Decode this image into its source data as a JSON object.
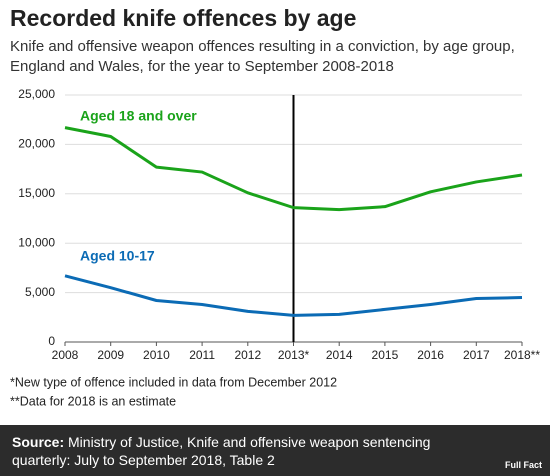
{
  "chart_data": {
    "type": "line",
    "title": "Recorded knife offences by age",
    "subtitle": "Knife and offensive weapon offences resulting in a conviction, by age group, England and Wales, for the year to September 2008-2018",
    "categories": [
      "2008",
      "2009",
      "2010",
      "2011",
      "2012",
      "2013*",
      "2014",
      "2015",
      "2016",
      "2017",
      "2018**"
    ],
    "series": [
      {
        "name": "Aged 18 and over",
        "color": "#1aa31a",
        "values": [
          21700,
          20800,
          17700,
          17200,
          15100,
          13600,
          13400,
          13700,
          15200,
          16200,
          16900
        ]
      },
      {
        "name": "Aged 10-17",
        "color": "#0b6bb5",
        "values": [
          6700,
          5500,
          4200,
          3800,
          3100,
          2700,
          2800,
          3300,
          3800,
          4400,
          4500
        ]
      }
    ],
    "ylim": [
      0,
      25000
    ],
    "yticks": [
      0,
      {
        "value": 5000,
        "label": "5,000"
      },
      {
        "value": 10000,
        "label": "10,000"
      },
      {
        "value": 15000,
        "label": "15,000"
      },
      {
        "value": 20000,
        "label": "20,000"
      },
      {
        "value": 25000,
        "label": "25,000"
      }
    ],
    "grid": true,
    "reference_line": "2013*",
    "footnotes": [
      "*New type of offence included in data from December 2012",
      "**Data for 2018 is an estimate"
    ],
    "source": {
      "label": "Source:",
      "text": "Ministry of Justice, Knife and offensive weapon sentencing quarterly: July to September 2018, Table 2"
    },
    "logo": "Full Fact"
  }
}
